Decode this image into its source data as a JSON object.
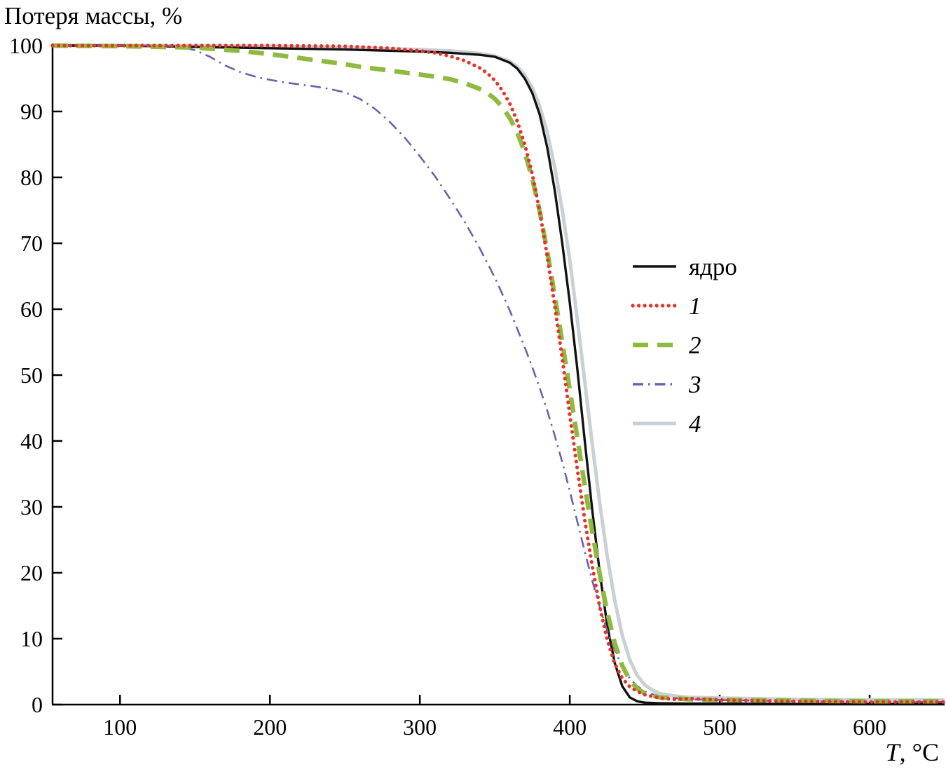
{
  "title": "Потеря массы, %",
  "xlabel": {
    "italic": "T",
    "rest": ", °C"
  },
  "chart_data": {
    "type": "line",
    "title": "",
    "ylabel": "Потеря массы, %",
    "xlabel": "T, °C",
    "xlim": [
      55,
      650
    ],
    "ylim": [
      0,
      100
    ],
    "xticks": [
      100,
      200,
      300,
      400,
      500,
      600
    ],
    "yticks": [
      0,
      10,
      20,
      30,
      40,
      50,
      60,
      70,
      80,
      90,
      100
    ],
    "grid": false,
    "legend_position": "center-right",
    "series": [
      {
        "name": "ядро",
        "label_italic": false,
        "color": "#111111",
        "style": "solid",
        "width": 3.4,
        "points": [
          [
            55,
            100
          ],
          [
            100,
            100
          ],
          [
            150,
            99.8
          ],
          [
            200,
            99.6
          ],
          [
            250,
            99.4
          ],
          [
            300,
            99.1
          ],
          [
            320,
            98.9
          ],
          [
            340,
            98.6
          ],
          [
            350,
            98.3
          ],
          [
            360,
            97.4
          ],
          [
            365,
            96.5
          ],
          [
            370,
            95
          ],
          [
            375,
            92.8
          ],
          [
            380,
            89.5
          ],
          [
            385,
            84.5
          ],
          [
            390,
            78
          ],
          [
            395,
            70
          ],
          [
            400,
            61
          ],
          [
            405,
            51
          ],
          [
            410,
            40
          ],
          [
            415,
            29.5
          ],
          [
            420,
            20
          ],
          [
            425,
            12
          ],
          [
            430,
            6.3
          ],
          [
            435,
            2.8
          ],
          [
            440,
            1.1
          ],
          [
            445,
            0.5
          ],
          [
            450,
            0.3
          ],
          [
            460,
            0.2
          ],
          [
            480,
            0.15
          ],
          [
            500,
            0.15
          ],
          [
            550,
            0.1
          ],
          [
            600,
            0.1
          ],
          [
            650,
            0.1
          ]
        ]
      },
      {
        "name": "1",
        "label_italic": true,
        "color": "#e5342c",
        "style": "dotted",
        "width": 5.2,
        "points": [
          [
            55,
            100
          ],
          [
            150,
            100
          ],
          [
            200,
            100
          ],
          [
            250,
            99.9
          ],
          [
            280,
            99.6
          ],
          [
            300,
            99.2
          ],
          [
            310,
            98.9
          ],
          [
            320,
            98.4
          ],
          [
            330,
            97.7
          ],
          [
            340,
            96.6
          ],
          [
            345,
            95.8
          ],
          [
            350,
            94.7
          ],
          [
            355,
            93.2
          ],
          [
            360,
            91.2
          ],
          [
            365,
            88.5
          ],
          [
            370,
            85
          ],
          [
            375,
            80.5
          ],
          [
            380,
            74.8
          ],
          [
            385,
            68
          ],
          [
            390,
            60.5
          ],
          [
            395,
            52.5
          ],
          [
            400,
            44
          ],
          [
            405,
            35.8
          ],
          [
            410,
            28
          ],
          [
            415,
            21
          ],
          [
            420,
            14.8
          ],
          [
            425,
            9.8
          ],
          [
            430,
            6.2
          ],
          [
            435,
            4
          ],
          [
            440,
            2.7
          ],
          [
            445,
            2
          ],
          [
            450,
            1.5
          ],
          [
            460,
            1
          ],
          [
            470,
            0.8
          ],
          [
            480,
            0.9
          ],
          [
            500,
            0.7
          ],
          [
            550,
            0.5
          ],
          [
            600,
            0.4
          ],
          [
            650,
            0.4
          ]
        ]
      },
      {
        "name": "2",
        "label_italic": true,
        "color": "#8fb93f",
        "style": "dashed",
        "width": 6.5,
        "points": [
          [
            55,
            100
          ],
          [
            100,
            99.9
          ],
          [
            150,
            99.7
          ],
          [
            180,
            99.2
          ],
          [
            200,
            98.7
          ],
          [
            220,
            98.1
          ],
          [
            240,
            97.5
          ],
          [
            260,
            96.8
          ],
          [
            280,
            96.2
          ],
          [
            300,
            95.6
          ],
          [
            310,
            95.3
          ],
          [
            320,
            94.9
          ],
          [
            330,
            94.3
          ],
          [
            340,
            93.4
          ],
          [
            345,
            92.8
          ],
          [
            350,
            91.9
          ],
          [
            355,
            90.7
          ],
          [
            360,
            89
          ],
          [
            365,
            86.8
          ],
          [
            370,
            83.8
          ],
          [
            375,
            79.8
          ],
          [
            380,
            74.8
          ],
          [
            385,
            68.8
          ],
          [
            390,
            62
          ],
          [
            395,
            55
          ],
          [
            400,
            47.8
          ],
          [
            405,
            40.5
          ],
          [
            410,
            33.2
          ],
          [
            415,
            26.2
          ],
          [
            420,
            19.8
          ],
          [
            425,
            14
          ],
          [
            430,
            9.3
          ],
          [
            435,
            5.9
          ],
          [
            440,
            3.7
          ],
          [
            445,
            2.4
          ],
          [
            450,
            1.7
          ],
          [
            460,
            1.1
          ],
          [
            480,
            0.8
          ],
          [
            500,
            0.7
          ],
          [
            550,
            0.6
          ],
          [
            600,
            0.5
          ],
          [
            650,
            0.5
          ]
        ]
      },
      {
        "name": "3",
        "label_italic": true,
        "color": "#6c61ae",
        "style": "dashdot",
        "width": 2.6,
        "points": [
          [
            55,
            100
          ],
          [
            100,
            100
          ],
          [
            130,
            100
          ],
          [
            140,
            99.8
          ],
          [
            150,
            99.3
          ],
          [
            160,
            98.3
          ],
          [
            170,
            97
          ],
          [
            180,
            96
          ],
          [
            190,
            95.3
          ],
          [
            200,
            94.8
          ],
          [
            210,
            94.4
          ],
          [
            220,
            94.1
          ],
          [
            230,
            93.8
          ],
          [
            240,
            93.4
          ],
          [
            250,
            92.9
          ],
          [
            260,
            91.9
          ],
          [
            270,
            90.4
          ],
          [
            280,
            88.4
          ],
          [
            290,
            86
          ],
          [
            300,
            83.2
          ],
          [
            310,
            80.2
          ],
          [
            320,
            76.8
          ],
          [
            330,
            73.2
          ],
          [
            340,
            69.2
          ],
          [
            350,
            64.8
          ],
          [
            360,
            59.8
          ],
          [
            370,
            54.2
          ],
          [
            375,
            51.2
          ],
          [
            380,
            48
          ],
          [
            385,
            44.6
          ],
          [
            390,
            40.8
          ],
          [
            395,
            36.8
          ],
          [
            400,
            32.4
          ],
          [
            405,
            27.8
          ],
          [
            410,
            23.2
          ],
          [
            415,
            18.8
          ],
          [
            420,
            14.8
          ],
          [
            425,
            11.2
          ],
          [
            430,
            8.2
          ],
          [
            435,
            5.8
          ],
          [
            440,
            4
          ],
          [
            445,
            2.8
          ],
          [
            450,
            2
          ],
          [
            460,
            1.2
          ],
          [
            480,
            0.8
          ],
          [
            500,
            0.7
          ],
          [
            550,
            0.5
          ],
          [
            600,
            0.4
          ],
          [
            650,
            0.4
          ]
        ]
      },
      {
        "name": "4",
        "label_italic": true,
        "color": "#cbd0d4",
        "style": "solid",
        "width": 5,
        "points": [
          [
            55,
            100
          ],
          [
            150,
            100
          ],
          [
            200,
            99.9
          ],
          [
            250,
            99.7
          ],
          [
            300,
            99.4
          ],
          [
            320,
            99.2
          ],
          [
            340,
            98.8
          ],
          [
            350,
            98.4
          ],
          [
            360,
            97.6
          ],
          [
            365,
            96.8
          ],
          [
            370,
            95.5
          ],
          [
            375,
            93.6
          ],
          [
            380,
            90.8
          ],
          [
            385,
            86.8
          ],
          [
            390,
            81.5
          ],
          [
            395,
            75
          ],
          [
            400,
            67.5
          ],
          [
            405,
            58.5
          ],
          [
            410,
            49
          ],
          [
            415,
            39.5
          ],
          [
            420,
            30.5
          ],
          [
            425,
            22.5
          ],
          [
            430,
            15.8
          ],
          [
            435,
            10.5
          ],
          [
            440,
            6.8
          ],
          [
            445,
            4.4
          ],
          [
            450,
            3
          ],
          [
            455,
            2.2
          ],
          [
            460,
            1.7
          ],
          [
            470,
            1.3
          ],
          [
            480,
            1.1
          ],
          [
            500,
            1
          ],
          [
            550,
            0.8
          ],
          [
            600,
            0.7
          ],
          [
            650,
            0.7
          ]
        ]
      }
    ]
  }
}
